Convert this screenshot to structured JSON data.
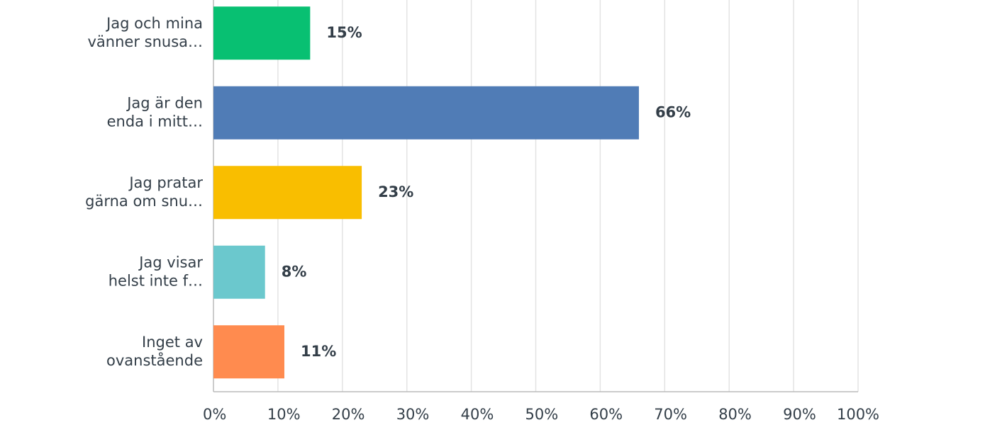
{
  "chart_data": {
    "type": "hbar",
    "categories": [
      [
        "Jag och mina",
        "vänner snusa…"
      ],
      [
        "Jag är den",
        "enda i mitt…"
      ],
      [
        "Jag pratar",
        "gärna om snu…"
      ],
      [
        "Jag visar",
        "helst inte f…"
      ],
      [
        "Inget av",
        "ovanstående"
      ]
    ],
    "values": [
      15,
      66,
      23,
      8,
      11
    ],
    "value_labels": [
      "15%",
      "66%",
      "23%",
      "8%",
      "11%"
    ],
    "colors": [
      "#08c072",
      "#507cb6",
      "#f9be00",
      "#6bc8cd",
      "#ff8b4f"
    ],
    "xlim": [
      0,
      100
    ],
    "xticks": [
      {
        "value": 0,
        "label": "0%"
      },
      {
        "value": 10,
        "label": "10%"
      },
      {
        "value": 20,
        "label": "20%"
      },
      {
        "value": 30,
        "label": "30%"
      },
      {
        "value": 40,
        "label": "40%"
      },
      {
        "value": 50,
        "label": "50%"
      },
      {
        "value": 60,
        "label": "60%"
      },
      {
        "value": 70,
        "label": "70%"
      },
      {
        "value": 80,
        "label": "80%"
      },
      {
        "value": 90,
        "label": "90%"
      },
      {
        "value": 100,
        "label": "100%"
      }
    ],
    "grid": true
  }
}
